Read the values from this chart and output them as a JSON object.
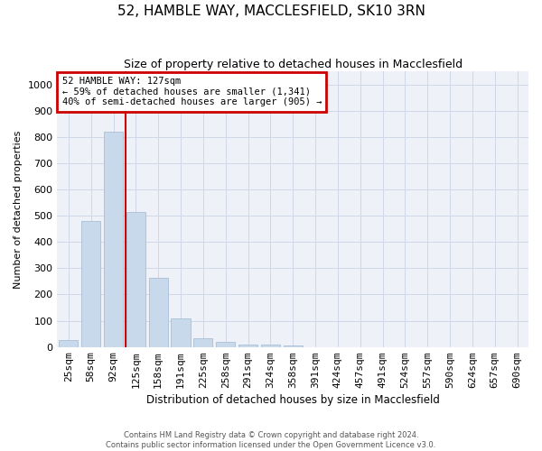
{
  "title": "52, HAMBLE WAY, MACCLESFIELD, SK10 3RN",
  "subtitle": "Size of property relative to detached houses in Macclesfield",
  "xlabel": "Distribution of detached houses by size in Macclesfield",
  "ylabel": "Number of detached properties",
  "categories": [
    "25sqm",
    "58sqm",
    "92sqm",
    "125sqm",
    "158sqm",
    "191sqm",
    "225sqm",
    "258sqm",
    "291sqm",
    "324sqm",
    "358sqm",
    "391sqm",
    "424sqm",
    "457sqm",
    "491sqm",
    "524sqm",
    "557sqm",
    "590sqm",
    "624sqm",
    "657sqm",
    "690sqm"
  ],
  "values": [
    25,
    480,
    820,
    515,
    265,
    110,
    35,
    20,
    10,
    8,
    5,
    0,
    0,
    0,
    0,
    0,
    0,
    0,
    0,
    0,
    0
  ],
  "bar_color": "#c9d9ec",
  "bar_edge_color": "#a0b8d0",
  "vline_color": "#cc0000",
  "vline_pos": 2.56,
  "annotation_text": "52 HAMBLE WAY: 127sqm\n← 59% of detached houses are smaller (1,341)\n40% of semi-detached houses are larger (905) →",
  "annotation_box_edgecolor": "#cc0000",
  "ylim": [
    0,
    1050
  ],
  "yticks": [
    0,
    100,
    200,
    300,
    400,
    500,
    600,
    700,
    800,
    900,
    1000
  ],
  "grid_color": "#d0d8e8",
  "background_color": "#eef2f8",
  "footer1": "Contains HM Land Registry data © Crown copyright and database right 2024.",
  "footer2": "Contains public sector information licensed under the Open Government Licence v3.0."
}
